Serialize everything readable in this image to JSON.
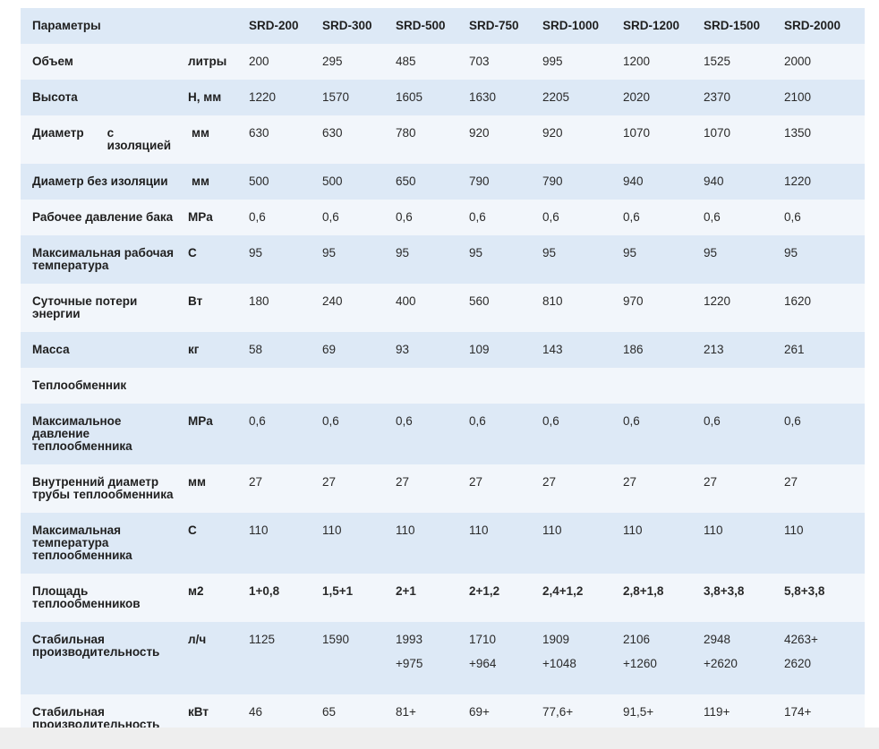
{
  "table": {
    "header": [
      "Параметры",
      "",
      "SRD-200",
      "SRD-300",
      "SRD-500",
      "SRD-750",
      "SRD-1000",
      "SRD-1200",
      "SRD-1500",
      "SRD-2000"
    ],
    "rows": [
      {
        "name": "Объем",
        "unit": "литры",
        "values": [
          "200",
          "295",
          "485",
          "703",
          "995",
          "1200",
          "1525",
          "2000"
        ]
      },
      {
        "name": "Высота",
        "unit": "H, мм",
        "values": [
          "1220",
          "1570",
          "1605",
          "1630",
          "2205",
          "2020",
          "2370",
          "2100"
        ]
      },
      {
        "name_a": "Диаметр",
        "name_b": "с изоляцией",
        "unit": "мм",
        "values": [
          "630",
          "630",
          "780",
          "920",
          "920",
          "1070",
          "1070",
          "1350"
        ]
      },
      {
        "name": "Диаметр без изоляции",
        "unit": "мм",
        "values": [
          "500",
          "500",
          "650",
          "790",
          "790",
          "940",
          "940",
          "1220"
        ]
      },
      {
        "name": "Рабочее давление бака",
        "unit": "MPa",
        "values": [
          "0,6",
          "0,6",
          "0,6",
          "0,6",
          "0,6",
          "0,6",
          "0,6",
          "0,6"
        ]
      },
      {
        "name": "Максимальная рабочая температура",
        "unit": "С",
        "values": [
          "95",
          "95",
          "95",
          "95",
          "95",
          "95",
          "95",
          "95"
        ]
      },
      {
        "name": "Суточные потери энергии",
        "unit": "Вт",
        "values": [
          "180",
          "240",
          "400",
          "560",
          "810",
          "970",
          "1220",
          "1620"
        ]
      },
      {
        "name": "Масса",
        "unit": "кг",
        "values": [
          "58",
          "69",
          "93",
          "109",
          "143",
          "186",
          "213",
          "261"
        ]
      },
      {
        "name": "Теплообменник",
        "unit": "",
        "values": [
          "",
          "",
          "",
          "",
          "",
          "",
          "",
          ""
        ]
      },
      {
        "name": "Максимальное давление теплообменника",
        "unit": "MPa",
        "values": [
          "0,6",
          "0,6",
          "0,6",
          "0,6",
          "0,6",
          "0,6",
          "0,6",
          "0,6"
        ]
      },
      {
        "name": "Внутренний диаметр трубы теплообменника",
        "unit": "мм",
        "values": [
          "27",
          "27",
          "27",
          "27",
          "27",
          "27",
          "27",
          "27"
        ]
      },
      {
        "name": "Максимальная температура теплообменника",
        "unit": "С",
        "values": [
          "110",
          "110",
          "110",
          "110",
          "110",
          "110",
          "110",
          "110"
        ]
      },
      {
        "name": "Площадь теплообменников",
        "unit": "м2",
        "values": [
          "1+0,8",
          "1,5+1",
          "2+1",
          "2+1,2",
          "2,4+1,2",
          "2,8+1,8",
          "3,8+3,8",
          "5,8+3,8"
        ]
      },
      {
        "name": "Стабильная производительность",
        "unit": "л/ч",
        "values_l1": [
          "1125",
          "1590",
          "1993",
          "1710",
          "1909",
          "2106",
          "2948",
          "4263+"
        ],
        "values_l2": [
          "",
          "",
          "+975",
          "+964",
          "+1048",
          "+1260",
          "+2620",
          "2620"
        ]
      },
      {
        "name": "Стабильная производительность",
        "unit": "кВт",
        "values": [
          "46",
          "65",
          "81+",
          "69+",
          "77,6+",
          "91,5+",
          "119+",
          "174+"
        ]
      }
    ]
  }
}
